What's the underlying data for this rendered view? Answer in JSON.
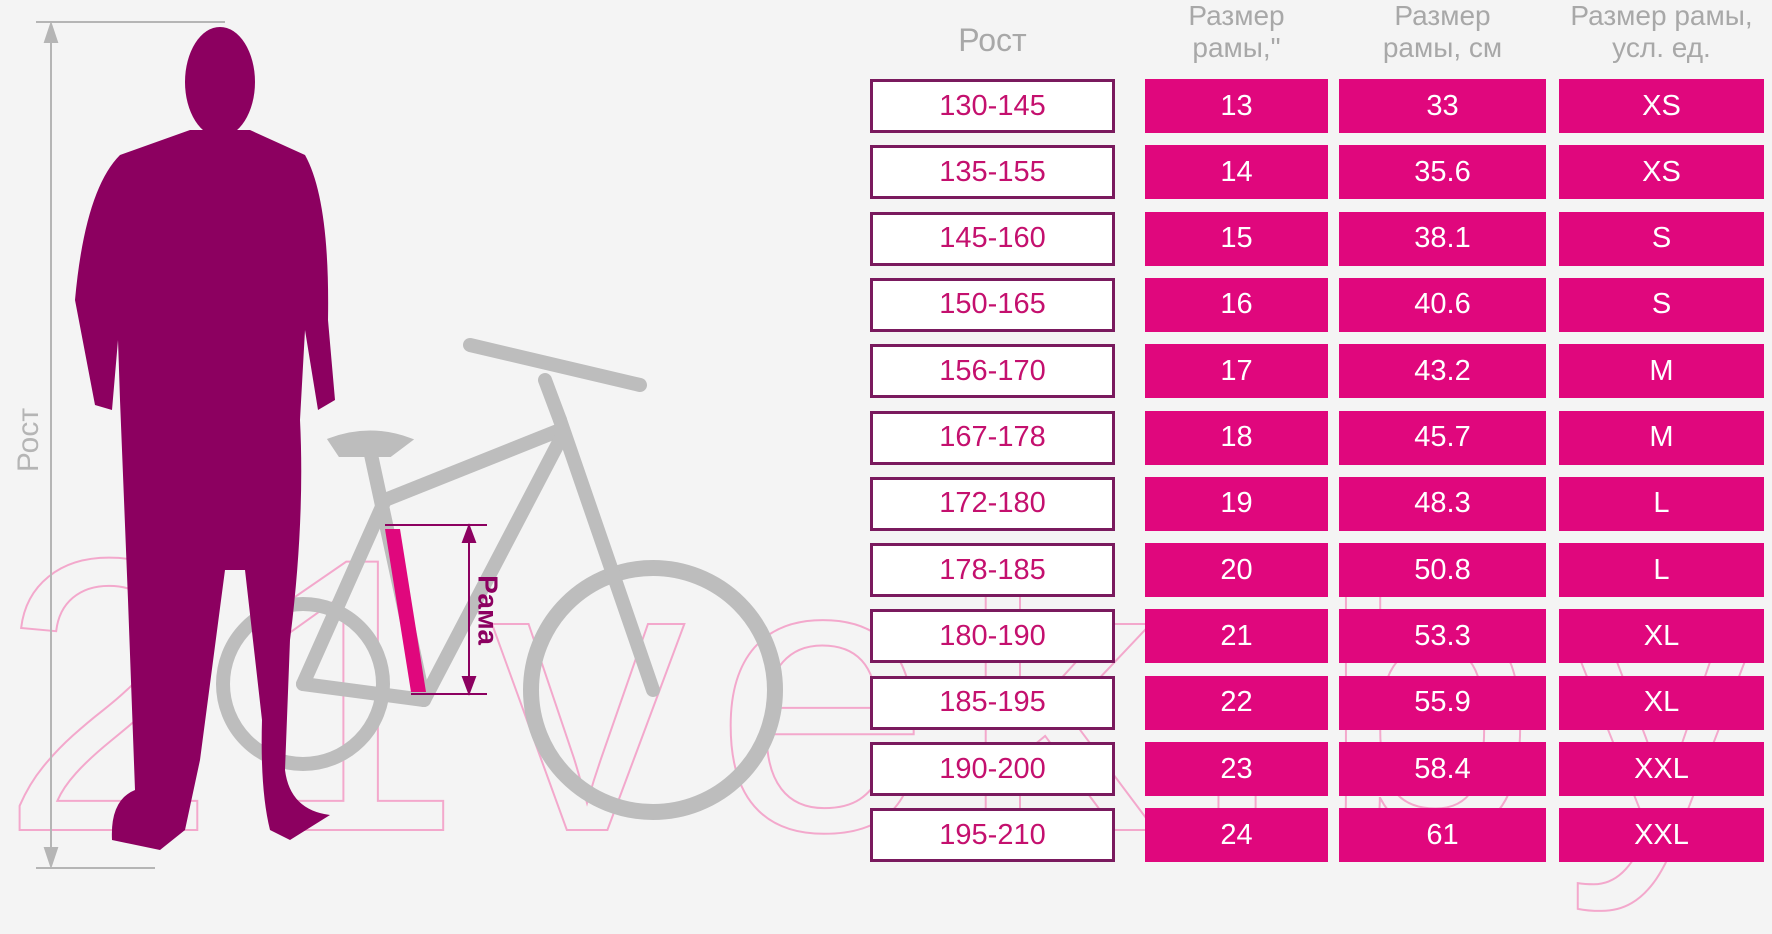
{
  "labels": {
    "height": "Рост",
    "frame": "Рама"
  },
  "watermark": "21vek.by",
  "table": {
    "headers": [
      "Рост",
      "Размер рамы,\"",
      "Размер рамы, см",
      "Размер рамы, усл. ед."
    ],
    "rows": [
      [
        "130-145",
        13,
        33,
        "XS"
      ],
      [
        "135-155",
        14,
        35.6,
        "XS"
      ],
      [
        "145-160",
        15,
        38.1,
        "S"
      ],
      [
        "150-165",
        16,
        40.6,
        "S"
      ],
      [
        "156-170",
        17,
        43.2,
        "M"
      ],
      [
        "167-178",
        18,
        45.7,
        "M"
      ],
      [
        "172-180",
        19,
        48.3,
        "L"
      ],
      [
        "178-185",
        20,
        50.8,
        "L"
      ],
      [
        "180-190",
        21,
        53.3,
        "XL"
      ],
      [
        "185-195",
        22,
        55.9,
        "XL"
      ],
      [
        "190-200",
        23,
        58.4,
        "XXL"
      ],
      [
        "195-210",
        24,
        61,
        "XXL"
      ]
    ]
  }
}
